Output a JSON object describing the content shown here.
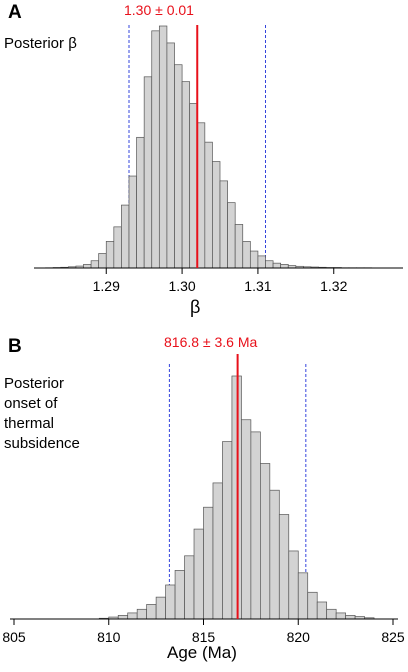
{
  "panel_a": {
    "letter": "A",
    "side_label": "Posterior β",
    "estimate_label": "1.30  ± 0.01",
    "xlabel": "β"
  },
  "panel_b": {
    "letter": "B",
    "side_label_lines": [
      "Posterior",
      "onset of",
      "thermal",
      "subsidence"
    ],
    "estimate_label": "816.8  ± 3.6  Ma",
    "xlabel": "Age (Ma)"
  },
  "colors": {
    "bar_fill": "#d3d3d3",
    "bar_stroke": "#555555",
    "estimate": "#e8101a",
    "interval": "#3344dd",
    "axis": "#000000"
  },
  "chart_data": [
    {
      "type": "bar",
      "panel": "A",
      "title": "",
      "xlabel": "β",
      "ylabel": "",
      "xticks": [
        1.29,
        1.3,
        1.31,
        1.32
      ],
      "xlim": [
        1.281,
        1.329
      ],
      "bin_width": 0.001,
      "bin_starts": [
        1.282,
        1.283,
        1.284,
        1.285,
        1.286,
        1.287,
        1.288,
        1.289,
        1.29,
        1.291,
        1.292,
        1.293,
        1.294,
        1.295,
        1.296,
        1.297,
        1.298,
        1.299,
        1.3,
        1.301,
        1.302,
        1.303,
        1.304,
        1.305,
        1.306,
        1.307,
        1.308,
        1.309,
        1.31,
        1.311,
        1.312,
        1.313,
        1.314,
        1.315,
        1.316,
        1.317,
        1.318,
        1.319,
        1.32,
        1.321,
        1.322,
        1.323,
        1.324
      ],
      "values": [
        0.1,
        0.2,
        0.3,
        0.5,
        0.8,
        1.5,
        3,
        6,
        11,
        17,
        26,
        38,
        54,
        79,
        98,
        100,
        93,
        84,
        77,
        68,
        60,
        52,
        44,
        36,
        27,
        18,
        11,
        7,
        5,
        3,
        2,
        1.5,
        1,
        0.7,
        0.5,
        0.4,
        0.3,
        0.2,
        0.2,
        0.1,
        0.1,
        0.1,
        0.1
      ],
      "units": "relative frequency (tallest bar = 100)",
      "estimate": {
        "value": 1.302,
        "label": "1.30  ± 0.01"
      },
      "interval": [
        1.293,
        1.311
      ]
    },
    {
      "type": "bar",
      "panel": "B",
      "title": "",
      "xlabel": "Age (Ma)",
      "ylabel": "",
      "xticks": [
        805,
        810,
        815,
        820,
        825
      ],
      "xlim": [
        805,
        825
      ],
      "bin_width": 0.5,
      "bin_starts": [
        809.5,
        810,
        810.5,
        811,
        811.5,
        812,
        812.5,
        813,
        813.5,
        814,
        814.5,
        815,
        815.5,
        816,
        816.5,
        817,
        817.5,
        818,
        818.5,
        819,
        819.5,
        820,
        820.5,
        821,
        821.5,
        822,
        822.5,
        823,
        823.5
      ],
      "values": [
        0.3,
        0.8,
        1.5,
        2.5,
        4,
        6,
        9,
        14,
        20,
        26,
        37,
        46,
        56,
        73,
        100,
        82,
        77,
        64,
        53,
        43,
        28,
        19,
        11,
        7,
        4,
        2.5,
        1.5,
        1,
        0.5
      ],
      "units": "relative frequency (tallest bar = 100)",
      "estimate": {
        "value": 816.8,
        "label": "816.8  ± 3.6  Ma"
      },
      "interval": [
        813.2,
        820.4
      ]
    }
  ]
}
